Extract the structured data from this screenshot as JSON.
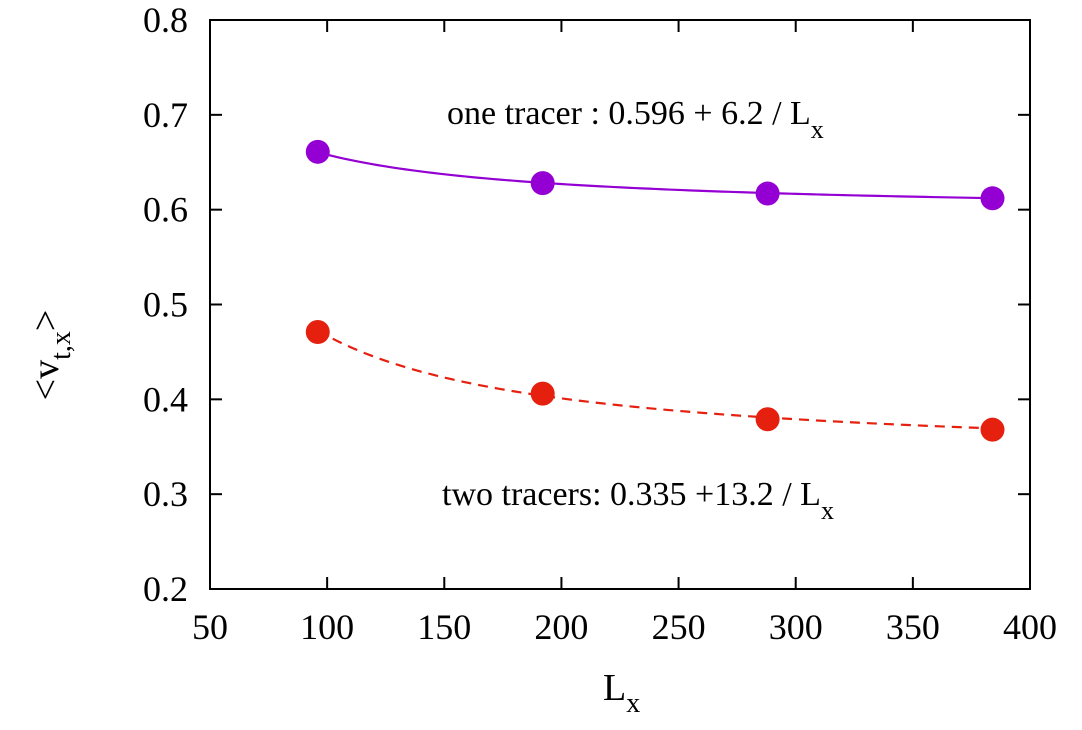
{
  "chart_data": {
    "type": "scatter",
    "xlabel": {
      "main": "L",
      "sub": "x"
    },
    "ylabel": {
      "pre": "<v",
      "sub": "t,x",
      "post": ">"
    },
    "xlim": [
      50,
      400
    ],
    "ylim": [
      0.2,
      0.8
    ],
    "x_ticks": [
      50,
      100,
      150,
      200,
      250,
      300,
      350,
      400
    ],
    "y_ticks": [
      0.2,
      0.3,
      0.4,
      0.5,
      0.6,
      0.7,
      0.8
    ],
    "x_tick_labels": [
      "50",
      "100",
      "150",
      "200",
      "250",
      "300",
      "350",
      "400"
    ],
    "y_tick_labels": [
      "0.2",
      "0.3",
      "0.4",
      "0.5",
      "0.6",
      "0.7",
      "0.8"
    ],
    "grid": false,
    "series": [
      {
        "x": [
          96,
          192,
          288,
          384
        ],
        "y": [
          0.661,
          0.628,
          0.617,
          0.612
        ],
        "color": "#9400D3",
        "fit": {
          "a": 0.596,
          "b": 6.2,
          "style": "solid"
        },
        "annotation": {
          "text": "one tracer :  0.596 + 6.2 / L",
          "sub": "x"
        }
      },
      {
        "x": [
          96,
          192,
          288,
          384
        ],
        "y": [
          0.471,
          0.406,
          0.379,
          0.368
        ],
        "color": "#E5200E",
        "fit": {
          "a": 0.335,
          "b": 13.2,
          "style": "dashed"
        },
        "annotation": {
          "text": "two tracers:  0.335 +13.2 / L",
          "sub": "x"
        }
      }
    ]
  }
}
